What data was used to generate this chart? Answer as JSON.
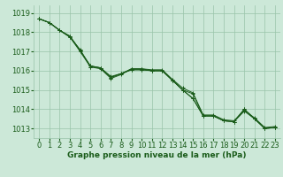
{
  "bg_color": "#cce8d8",
  "grid_color": "#99c4aa",
  "line_color": "#1a5c1a",
  "xlabel": "Graphe pression niveau de la mer (hPa)",
  "ylim": [
    1012.5,
    1019.4
  ],
  "xlim": [
    -0.5,
    23.5
  ],
  "yticks": [
    1013,
    1014,
    1015,
    1016,
    1017,
    1018,
    1019
  ],
  "xticks": [
    0,
    1,
    2,
    3,
    4,
    5,
    6,
    7,
    8,
    9,
    10,
    11,
    12,
    13,
    14,
    15,
    16,
    17,
    18,
    19,
    20,
    21,
    22,
    23
  ],
  "series": [
    [
      1018.7,
      1018.5,
      1018.1,
      1017.75,
      1017.0,
      1016.2,
      1016.1,
      1015.6,
      1015.8,
      1016.1,
      1016.1,
      1016.0,
      1016.0,
      1015.5,
      1015.0,
      1014.8,
      1013.65,
      1013.65,
      1013.4,
      1013.35,
      1013.9,
      1013.5,
      1013.0,
      1013.05
    ],
    [
      1018.7,
      1018.5,
      1018.1,
      1017.75,
      1017.1,
      1016.2,
      1016.15,
      1015.7,
      1015.85,
      1016.1,
      1016.1,
      1016.05,
      1016.05,
      1015.55,
      1015.1,
      1014.85,
      1013.7,
      1013.7,
      1013.45,
      1013.4,
      1013.95,
      1013.55,
      1013.05,
      1013.1
    ],
    [
      1018.7,
      1018.5,
      1018.1,
      1017.8,
      1017.05,
      1016.25,
      1016.15,
      1015.65,
      1015.85,
      1016.05,
      1016.05,
      1016.0,
      1016.0,
      1015.5,
      1015.0,
      1014.55,
      1013.65,
      1013.65,
      1013.4,
      1013.35,
      1014.0,
      1013.5,
      1013.0,
      1013.05
    ],
    [
      1018.7,
      1018.5,
      1018.1,
      1017.8,
      1017.05,
      1016.25,
      1016.15,
      1015.65,
      1015.85,
      1016.05,
      1016.05,
      1016.0,
      1016.0,
      1015.5,
      1015.0,
      1014.55,
      1013.65,
      1013.65,
      1013.4,
      1013.35,
      1014.0,
      1013.5,
      1013.0,
      1013.05
    ]
  ],
  "tick_fontsize": 6,
  "xlabel_fontsize": 6.5
}
